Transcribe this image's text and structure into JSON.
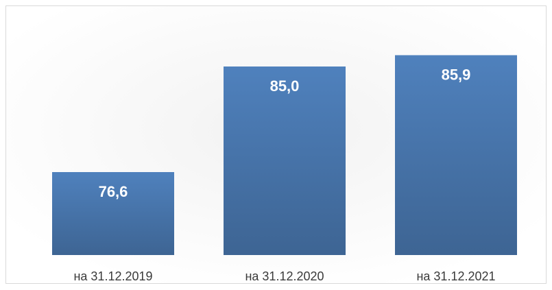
{
  "chart_data": {
    "type": "bar",
    "categories": [
      "на 31.12.2019",
      "на 31.12.2020",
      "на 31.12.2021"
    ],
    "values": [
      76.6,
      85.0,
      85.9
    ],
    "value_labels": [
      "76,6",
      "85,0",
      "85,9"
    ],
    "color": "#4f81bd",
    "ylim": [
      70,
      88
    ]
  }
}
